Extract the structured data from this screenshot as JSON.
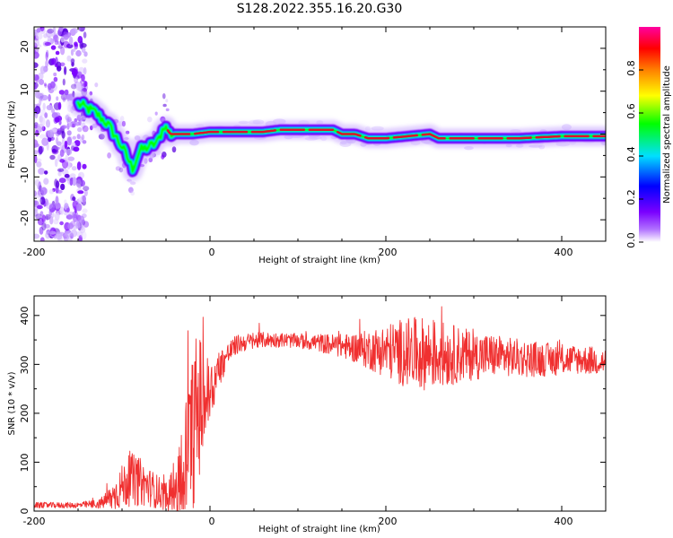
{
  "title": "S128.2022.355.16.20.G30",
  "colors": {
    "snr_line": "#f03030",
    "axis": "#000000",
    "ridge": "#e0102a"
  },
  "chart_data": [
    {
      "type": "heatmap",
      "xlabel": "Height of straight line (km)",
      "ylabel": "Frequency (Hz)",
      "xlim": [
        -200,
        450
      ],
      "ylim": [
        -25,
        25
      ],
      "xticks": [
        -200,
        0,
        200,
        400
      ],
      "yticks": [
        -20,
        -10,
        0,
        10,
        20
      ],
      "colorbar": {
        "label": "Normalized spectral amplitude",
        "ticks": [
          "0.0",
          "0.2",
          "0.4",
          "0.6",
          "0.8"
        ],
        "range": [
          0,
          1
        ],
        "colormap": [
          "#ffffff",
          "#7a00ff",
          "#0000ff",
          "#00e0ff",
          "#00ff00",
          "#ffff00",
          "#ff8000",
          "#ff0000",
          "#ff00a0"
        ]
      },
      "ridge_frequency": {
        "x": [
          -150,
          -130,
          -115,
          -100,
          -88,
          -80,
          -70,
          -60,
          -52,
          -45,
          -40,
          -20,
          0,
          20,
          50,
          60,
          80,
          100,
          140,
          150,
          165,
          180,
          200,
          250,
          260,
          300,
          350,
          400,
          450
        ],
        "y": [
          7,
          5,
          2,
          -3,
          -8,
          -4,
          -3,
          -2,
          2,
          0,
          0,
          0,
          0.5,
          0.5,
          0.5,
          0.5,
          1,
          1,
          1,
          0,
          0,
          -1,
          -1,
          0,
          -1,
          -1,
          -1,
          -0.5,
          -0.5
        ]
      }
    },
    {
      "type": "line",
      "xlabel": "Height of straight line (km)",
      "ylabel": "SNR (10 * v/v)",
      "xlim": [
        -200,
        450
      ],
      "ylim": [
        0,
        440
      ],
      "xticks": [
        -200,
        0,
        200,
        400
      ],
      "yticks": [
        0,
        100,
        200,
        300,
        400
      ],
      "envelope": {
        "x": [
          -200,
          -150,
          -125,
          -110,
          -100,
          -90,
          -80,
          -70,
          -60,
          -50,
          -40,
          -30,
          -25,
          -20,
          -15,
          -10,
          -5,
          0,
          10,
          20,
          30,
          40,
          60,
          80,
          100,
          120,
          140,
          160,
          180,
          200,
          220,
          240,
          260,
          280,
          300,
          320,
          340,
          360,
          380,
          400,
          420,
          450
        ],
        "mean": [
          12,
          12,
          15,
          30,
          50,
          65,
          60,
          50,
          40,
          30,
          45,
          90,
          120,
          160,
          200,
          220,
          230,
          240,
          290,
          320,
          340,
          345,
          350,
          350,
          348,
          345,
          340,
          335,
          330,
          328,
          325,
          322,
          320,
          320,
          318,
          318,
          315,
          312,
          310,
          310,
          310,
          305
        ],
        "noise": [
          6,
          6,
          10,
          30,
          45,
          55,
          50,
          40,
          35,
          30,
          60,
          120,
          140,
          160,
          170,
          140,
          100,
          70,
          40,
          25,
          20,
          18,
          16,
          15,
          15,
          18,
          22,
          28,
          40,
          55,
          70,
          75,
          70,
          60,
          50,
          45,
          40,
          38,
          35,
          32,
          30,
          28
        ]
      }
    }
  ]
}
